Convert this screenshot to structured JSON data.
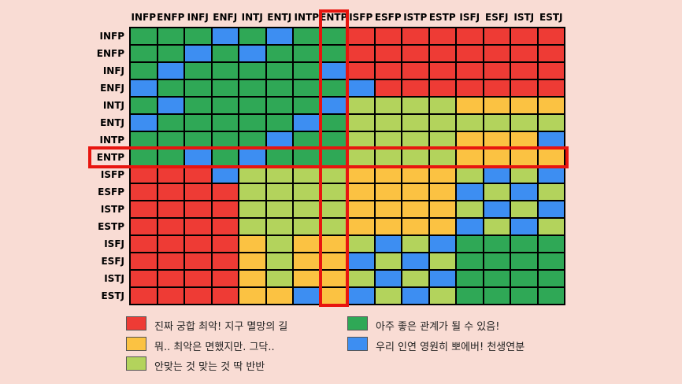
{
  "chart_data": {
    "type": "heatmap",
    "columns": [
      "INFP",
      "ENFP",
      "INFJ",
      "ENFJ",
      "INTJ",
      "ENTJ",
      "INTP",
      "ENTP",
      "ISFP",
      "ESFP",
      "ISTP",
      "ESTP",
      "ISFJ",
      "ESFJ",
      "ISTJ",
      "ESTJ"
    ],
    "rows": [
      "INFP",
      "ENFP",
      "INFJ",
      "ENFJ",
      "INTJ",
      "ENTJ",
      "INTP",
      "ENTP",
      "ISFP",
      "ESFP",
      "ISTP",
      "ESTP",
      "ISFJ",
      "ESFJ",
      "ISTJ",
      "ESTJ"
    ],
    "matrix": [
      [
        "G",
        "G",
        "G",
        "B",
        "G",
        "B",
        "G",
        "G",
        "R",
        "R",
        "R",
        "R",
        "R",
        "R",
        "R",
        "R"
      ],
      [
        "G",
        "G",
        "B",
        "G",
        "B",
        "G",
        "G",
        "G",
        "R",
        "R",
        "R",
        "R",
        "R",
        "R",
        "R",
        "R"
      ],
      [
        "G",
        "B",
        "G",
        "G",
        "G",
        "G",
        "G",
        "B",
        "R",
        "R",
        "R",
        "R",
        "R",
        "R",
        "R",
        "R"
      ],
      [
        "B",
        "G",
        "G",
        "G",
        "G",
        "G",
        "G",
        "G",
        "B",
        "R",
        "R",
        "R",
        "R",
        "R",
        "R",
        "R"
      ],
      [
        "G",
        "B",
        "G",
        "G",
        "G",
        "G",
        "G",
        "B",
        "L",
        "L",
        "L",
        "L",
        "Y",
        "Y",
        "Y",
        "Y"
      ],
      [
        "B",
        "G",
        "G",
        "G",
        "G",
        "G",
        "B",
        "G",
        "L",
        "L",
        "L",
        "L",
        "L",
        "L",
        "L",
        "L"
      ],
      [
        "G",
        "G",
        "G",
        "G",
        "G",
        "B",
        "G",
        "G",
        "L",
        "L",
        "L",
        "L",
        "Y",
        "Y",
        "Y",
        "B"
      ],
      [
        "G",
        "G",
        "B",
        "G",
        "B",
        "G",
        "G",
        "G",
        "L",
        "L",
        "L",
        "L",
        "Y",
        "Y",
        "Y",
        "Y"
      ],
      [
        "R",
        "R",
        "R",
        "B",
        "L",
        "L",
        "L",
        "L",
        "Y",
        "Y",
        "Y",
        "Y",
        "L",
        "B",
        "L",
        "B"
      ],
      [
        "R",
        "R",
        "R",
        "R",
        "L",
        "L",
        "L",
        "L",
        "Y",
        "Y",
        "Y",
        "Y",
        "B",
        "L",
        "B",
        "L"
      ],
      [
        "R",
        "R",
        "R",
        "R",
        "L",
        "L",
        "L",
        "L",
        "Y",
        "Y",
        "Y",
        "Y",
        "L",
        "B",
        "L",
        "B"
      ],
      [
        "R",
        "R",
        "R",
        "R",
        "L",
        "L",
        "L",
        "L",
        "Y",
        "Y",
        "Y",
        "Y",
        "B",
        "L",
        "B",
        "L"
      ],
      [
        "R",
        "R",
        "R",
        "R",
        "Y",
        "L",
        "Y",
        "Y",
        "L",
        "B",
        "L",
        "B",
        "G",
        "G",
        "G",
        "G"
      ],
      [
        "R",
        "R",
        "R",
        "R",
        "Y",
        "L",
        "Y",
        "Y",
        "B",
        "L",
        "B",
        "L",
        "G",
        "G",
        "G",
        "G"
      ],
      [
        "R",
        "R",
        "R",
        "R",
        "Y",
        "L",
        "Y",
        "Y",
        "L",
        "B",
        "L",
        "B",
        "G",
        "G",
        "G",
        "G"
      ],
      [
        "R",
        "R",
        "R",
        "R",
        "Y",
        "Y",
        "B",
        "Y",
        "B",
        "L",
        "B",
        "L",
        "G",
        "G",
        "G",
        "G"
      ]
    ],
    "highlight": {
      "row": "ENTP",
      "column": "ENTP",
      "color": "#e8150f"
    },
    "colors": {
      "R": "#ee3b35",
      "Y": "#fbc242",
      "L": "#b3d35c",
      "G": "#2fa856",
      "B": "#3d8ef2"
    },
    "legend": [
      {
        "key": "R",
        "label": "진짜 궁합 최악! 지구 멸망의 길"
      },
      {
        "key": "Y",
        "label": "뭐.. 최악은 면했지만. 그닥.."
      },
      {
        "key": "L",
        "label": "안맞는 것 맞는 것 딱 반반"
      },
      {
        "key": "G",
        "label": "아주 좋은 관계가 될 수 있음!"
      },
      {
        "key": "B",
        "label": "우리 인연 영원히 뽀에버! 천생연분"
      }
    ]
  }
}
